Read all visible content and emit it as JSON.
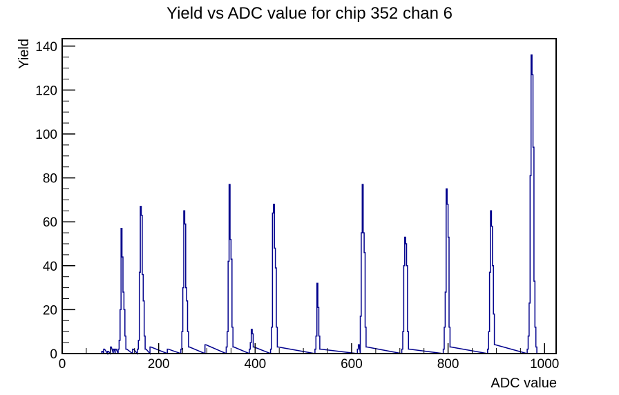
{
  "chart_data": {
    "type": "bar",
    "subtype": "step-histogram",
    "title": "Yield vs ADC value for chip 352 chan 6",
    "xlabel": "ADC value",
    "ylabel": "Yield",
    "xlim": [
      0,
      1024
    ],
    "ylim": [
      0,
      143.4
    ],
    "x_major_ticks": [
      0,
      200,
      400,
      600,
      800,
      1000
    ],
    "x_minor_step": 50,
    "y_major_ticks": [
      0,
      20,
      40,
      60,
      80,
      100,
      120,
      140
    ],
    "y_minor_step": 5,
    "grid": "off",
    "legend": "none",
    "line_color": "#00008c",
    "axis_color": "#000000",
    "background_color": "#ffffff",
    "bin_width": 2,
    "bins": [
      [
        82,
        1
      ],
      [
        86,
        2
      ],
      [
        94,
        1
      ],
      [
        100,
        3
      ],
      [
        106,
        2
      ],
      [
        110,
        2
      ],
      [
        116,
        2
      ],
      [
        118,
        6
      ],
      [
        120,
        20
      ],
      [
        122,
        57
      ],
      [
        124,
        44
      ],
      [
        126,
        28
      ],
      [
        128,
        20
      ],
      [
        130,
        8
      ],
      [
        132,
        2
      ],
      [
        146,
        2
      ],
      [
        156,
        2
      ],
      [
        158,
        6
      ],
      [
        160,
        37
      ],
      [
        162,
        67
      ],
      [
        164,
        63
      ],
      [
        166,
        36
      ],
      [
        168,
        24
      ],
      [
        170,
        8
      ],
      [
        172,
        2
      ],
      [
        182,
        3
      ],
      [
        218,
        2
      ],
      [
        246,
        2
      ],
      [
        248,
        10
      ],
      [
        250,
        30
      ],
      [
        252,
        65
      ],
      [
        254,
        59
      ],
      [
        256,
        30
      ],
      [
        258,
        24
      ],
      [
        260,
        10
      ],
      [
        262,
        3
      ],
      [
        296,
        4
      ],
      [
        340,
        3
      ],
      [
        342,
        10
      ],
      [
        344,
        42
      ],
      [
        346,
        77
      ],
      [
        348,
        52
      ],
      [
        350,
        43
      ],
      [
        352,
        12
      ],
      [
        354,
        3
      ],
      [
        388,
        2
      ],
      [
        390,
        5
      ],
      [
        392,
        11
      ],
      [
        394,
        9
      ],
      [
        396,
        3
      ],
      [
        432,
        2
      ],
      [
        434,
        12
      ],
      [
        436,
        64
      ],
      [
        438,
        68
      ],
      [
        440,
        48
      ],
      [
        442,
        39
      ],
      [
        444,
        12
      ],
      [
        446,
        3
      ],
      [
        524,
        2
      ],
      [
        526,
        8
      ],
      [
        528,
        32
      ],
      [
        530,
        21
      ],
      [
        532,
        8
      ],
      [
        534,
        2
      ],
      [
        612,
        2
      ],
      [
        614,
        4
      ],
      [
        618,
        17
      ],
      [
        620,
        55
      ],
      [
        622,
        77
      ],
      [
        624,
        55
      ],
      [
        626,
        46
      ],
      [
        628,
        12
      ],
      [
        630,
        3
      ],
      [
        704,
        2
      ],
      [
        706,
        10
      ],
      [
        708,
        40
      ],
      [
        710,
        53
      ],
      [
        712,
        50
      ],
      [
        714,
        40
      ],
      [
        716,
        10
      ],
      [
        718,
        2
      ],
      [
        790,
        2
      ],
      [
        792,
        12
      ],
      [
        794,
        28
      ],
      [
        796,
        75
      ],
      [
        798,
        68
      ],
      [
        800,
        53
      ],
      [
        802,
        12
      ],
      [
        804,
        3
      ],
      [
        882,
        2
      ],
      [
        884,
        10
      ],
      [
        886,
        37
      ],
      [
        888,
        65
      ],
      [
        890,
        58
      ],
      [
        892,
        40
      ],
      [
        894,
        18
      ],
      [
        896,
        4
      ],
      [
        964,
        2
      ],
      [
        966,
        8
      ],
      [
        968,
        23
      ],
      [
        970,
        81
      ],
      [
        972,
        136
      ],
      [
        974,
        127
      ],
      [
        976,
        94
      ],
      [
        978,
        33
      ],
      [
        980,
        12
      ],
      [
        982,
        3
      ]
    ],
    "peak_summary": [
      {
        "adc": 122,
        "yield": 57
      },
      {
        "adc": 162,
        "yield": 67
      },
      {
        "adc": 252,
        "yield": 65
      },
      {
        "adc": 346,
        "yield": 77
      },
      {
        "adc": 392,
        "yield": 11
      },
      {
        "adc": 438,
        "yield": 68
      },
      {
        "adc": 528,
        "yield": 32
      },
      {
        "adc": 622,
        "yield": 77
      },
      {
        "adc": 710,
        "yield": 53
      },
      {
        "adc": 796,
        "yield": 75
      },
      {
        "adc": 888,
        "yield": 65
      },
      {
        "adc": 972,
        "yield": 136
      }
    ]
  }
}
